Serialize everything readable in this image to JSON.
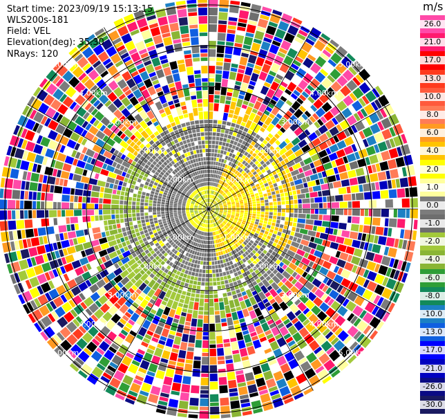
{
  "info": {
    "start_time": "Start time: 2023/09/19 15:13:15",
    "station": "WLS200s-181",
    "field": "Field: VEL",
    "elevation": "Elevation(deg): 35.30",
    "nrays": "NRays: 120"
  },
  "colorbar": {
    "unit": "m/s",
    "ticks": [
      "26.0",
      "21.0",
      "17.0",
      "13.0",
      "10.0",
      "8.0",
      "6.0",
      "4.0",
      "2.0",
      "1.0",
      "0.0",
      "-1.0",
      "-2.0",
      "-4.0",
      "-6.0",
      "-8.0",
      "-10.0",
      "-13.0",
      "-17.0",
      "-21.0",
      "-26.0",
      "-30.0"
    ],
    "colors": [
      "#ff4aa8",
      "#ff1a6e",
      "#ff0000",
      "#ff3b1e",
      "#ff5a3c",
      "#ff7c57",
      "#ff9a22",
      "#ffc400",
      "#ffff00",
      "#ffff9e",
      "#7c7c7c",
      "#6e6e6e",
      "#a3c93a",
      "#8ab534",
      "#2e9e36",
      "#128a5a",
      "#1c80c4",
      "#0f5fe0",
      "#0000ff",
      "#0000c0",
      "#0b0b84",
      "#1a1a60"
    ]
  },
  "range_rings": {
    "labels": [
      "1.00km",
      "2.00km",
      "3.00km",
      "4.00km",
      "5.00km"
    ]
  }
}
